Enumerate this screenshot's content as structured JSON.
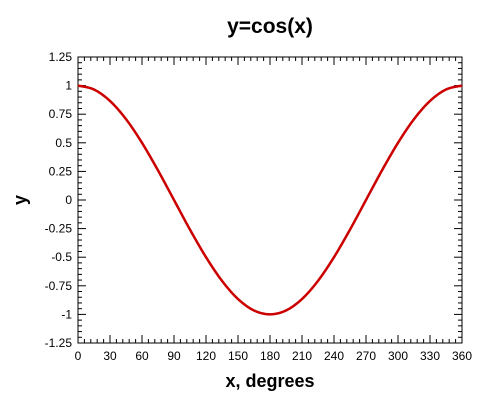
{
  "chart_data": {
    "type": "line",
    "title": "y=cos(x)",
    "xlabel": "x, degrees",
    "ylabel": "y",
    "xlim": [
      0,
      360
    ],
    "ylim": [
      -1.25,
      1.25
    ],
    "x_ticks": [
      0,
      30,
      60,
      90,
      120,
      150,
      180,
      210,
      240,
      270,
      300,
      330,
      360
    ],
    "y_ticks": [
      -1.25,
      -1,
      -0.75,
      -0.5,
      -0.25,
      0,
      0.25,
      0.5,
      0.75,
      1,
      1.25
    ],
    "x_tick_labels": [
      "0",
      "30",
      "60",
      "90",
      "120",
      "150",
      "180",
      "210",
      "240",
      "270",
      "300",
      "330",
      "360"
    ],
    "y_tick_labels": [
      "-1.25",
      "-1",
      "-0.75",
      "-0.5",
      "-0.25",
      "0",
      "0.25",
      "0.5",
      "0.75",
      "1",
      "1.25"
    ],
    "grid": false,
    "series": [
      {
        "color": "#cc0000",
        "x": [
          0,
          15,
          30,
          45,
          60,
          75,
          90,
          105,
          120,
          135,
          150,
          165,
          180,
          195,
          210,
          225,
          240,
          255,
          270,
          285,
          300,
          315,
          330,
          345,
          360
        ],
        "y": [
          1,
          0.966,
          0.866,
          0.707,
          0.5,
          0.259,
          0,
          -0.259,
          -0.5,
          -0.707,
          -0.866,
          -0.966,
          -1,
          -0.966,
          -0.866,
          -0.707,
          -0.5,
          -0.259,
          0,
          0.259,
          0.5,
          0.707,
          0.866,
          0.966,
          1
        ]
      }
    ]
  }
}
